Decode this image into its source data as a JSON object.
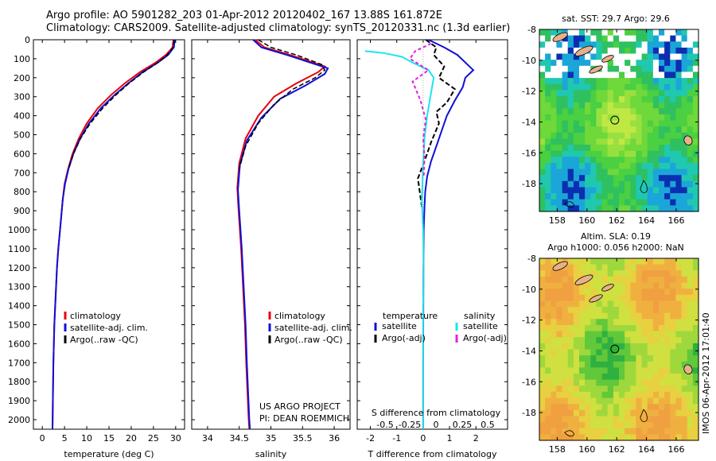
{
  "title": {
    "line1": "Argo profile: AO 5901282_203 01-Apr-2012 20120402_167 13.88S 161.872E",
    "line2": "Climatology: CARS2009. Satellite-adjusted climatology: synTS_20120331.nc (1.3d earlier)"
  },
  "side_stamp": "IMOS 06-Apr-2012 17:01:40",
  "colors": {
    "climatology": "#e8000b",
    "satellite": "#1010d8",
    "argo": "#000000",
    "sat_salinity": "#1ae6f0",
    "argo_salinity": "#e020e0",
    "land": "#e8b08a"
  },
  "chart_data": [
    {
      "type": "line",
      "panel": "temperature",
      "xlabel": "temperature (deg C)",
      "ylabel": "",
      "xlim": [
        -2,
        32
      ],
      "ylim": [
        2050,
        0
      ],
      "xticks": [
        "0",
        "5",
        "10",
        "15",
        "20",
        "25",
        "30"
      ],
      "yticks": [
        "0",
        "100",
        "200",
        "300",
        "400",
        "500",
        "600",
        "700",
        "800",
        "900",
        "1000",
        "1100",
        "1200",
        "1300",
        "1400",
        "1500",
        "1600",
        "1700",
        "1800",
        "1900",
        "2000"
      ],
      "legend": [
        "climatology",
        "satellite-adj. clim.",
        "Argo(..raw -QC)"
      ],
      "series": [
        {
          "name": "climatology",
          "x": [
            29.5,
            29.3,
            27.8,
            25.5,
            22,
            18.5,
            15.5,
            12.5,
            10,
            8.2,
            6.8,
            5.8,
            5,
            4.6,
            4.3,
            4,
            3.6,
            3.3,
            3.1,
            2.9,
            2.7,
            2.6,
            2.5,
            2.4,
            2.3
          ],
          "y": [
            0,
            40,
            80,
            120,
            170,
            230,
            290,
            360,
            440,
            520,
            600,
            680,
            760,
            840,
            920,
            1000,
            1100,
            1200,
            1300,
            1400,
            1500,
            1600,
            1700,
            1850,
            2050
          ]
        },
        {
          "name": "satellite-adj. clim.",
          "x": [
            29.8,
            29.6,
            28.3,
            26,
            22.6,
            19.3,
            16.3,
            13.2,
            10.5,
            8.5,
            7,
            5.9,
            5.1,
            4.6,
            4.3,
            4,
            3.6,
            3.3,
            3.1,
            2.9,
            2.7,
            2.6,
            2.5,
            2.4,
            2.3
          ],
          "y": [
            0,
            40,
            80,
            120,
            170,
            230,
            290,
            360,
            440,
            520,
            600,
            680,
            760,
            840,
            920,
            1000,
            1100,
            1200,
            1300,
            1400,
            1500,
            1600,
            1700,
            1850,
            2050
          ]
        },
        {
          "name": "Argo(..raw -QC)",
          "x": [
            29.6,
            29.4,
            28.1,
            26,
            22.8,
            19.5,
            16.6,
            13.6,
            10.8,
            8.6,
            7,
            5.9
          ],
          "y": [
            0,
            40,
            80,
            120,
            170,
            230,
            290,
            360,
            440,
            520,
            600,
            680
          ]
        }
      ]
    },
    {
      "type": "line",
      "panel": "salinity",
      "xlabel": "salinity",
      "xlim": [
        33.75,
        36.25
      ],
      "ylim": [
        2050,
        0
      ],
      "xticks": [
        "34",
        "34.5",
        "35",
        "35.5",
        "36"
      ],
      "legend": [
        "climatology",
        "satellite-adj. clim.",
        "Argo(..raw -QC)"
      ],
      "annotation": [
        "US ARGO PROJECT",
        "PI: DEAN ROEMMICH"
      ],
      "series": [
        {
          "name": "climatology",
          "x": [
            34.75,
            34.9,
            35.3,
            35.85,
            35.75,
            35.4,
            35.05,
            34.8,
            34.6,
            34.5,
            34.47,
            34.49,
            34.53,
            34.56,
            34.59,
            34.61,
            34.63,
            34.65,
            34.66
          ],
          "y": [
            0,
            40,
            80,
            140,
            170,
            230,
            300,
            400,
            520,
            650,
            780,
            900,
            1100,
            1300,
            1500,
            1700,
            1850,
            2000,
            2050
          ]
        },
        {
          "name": "satellite-adj. clim.",
          "x": [
            34.72,
            34.85,
            35.25,
            35.9,
            35.85,
            35.55,
            35.15,
            34.85,
            34.62,
            34.51,
            34.48,
            34.5,
            34.54,
            34.57,
            34.6,
            34.62,
            34.64,
            34.66,
            34.67
          ],
          "y": [
            0,
            40,
            80,
            150,
            180,
            240,
            310,
            410,
            530,
            660,
            790,
            900,
            1100,
            1300,
            1500,
            1700,
            1850,
            2000,
            2050
          ]
        },
        {
          "name": "Argo(..raw -QC)",
          "x": [
            34.8,
            35,
            35.4,
            35.8,
            35.85,
            35.7,
            35.35,
            35.05,
            34.8,
            34.6,
            34.5
          ],
          "y": [
            0,
            40,
            80,
            130,
            160,
            200,
            260,
            340,
            440,
            560,
            680
          ]
        }
      ]
    },
    {
      "type": "line",
      "panel": "difference",
      "xlabel": "T difference from climatology",
      "secondary_xlabel": "S difference from climatology",
      "xlim": [
        -2.5,
        3.2
      ],
      "ylim": [
        2050,
        0
      ],
      "xticks": [
        "-2",
        "-1",
        "0",
        "1",
        "2"
      ],
      "secondary_xticks": [
        "-0.5",
        "-0.25",
        "0",
        "0.25",
        "0.5"
      ],
      "legend": {
        "temperature": [
          "satellite",
          "Argo(-adj)"
        ],
        "salinity": [
          "satellite",
          "Argo(-adj)"
        ],
        "temperature_heading": "temperature",
        "salinity_heading": "salinity"
      },
      "series": [
        {
          "name": "temperature satellite",
          "x": [
            0.2,
            0.8,
            1.3,
            1.9,
            1.6,
            1.5,
            1.2,
            0.9,
            0.7,
            0.5,
            0.3,
            0.15,
            0.08,
            0.05,
            0.02,
            0.01,
            0,
            0
          ],
          "y": [
            0,
            40,
            80,
            160,
            200,
            250,
            320,
            400,
            480,
            560,
            640,
            720,
            800,
            880,
            1000,
            1300,
            1700,
            2050
          ]
        },
        {
          "name": "temperature Argo(-adj)",
          "x": [
            0.1,
            0.5,
            0.4,
            0.8,
            0.6,
            1.2,
            0.9,
            0.5,
            0.6,
            0.3,
            0.1,
            -0.2,
            -0.1,
            -0.05
          ],
          "y": [
            0,
            40,
            80,
            140,
            200,
            260,
            330,
            380,
            440,
            540,
            620,
            730,
            830,
            880
          ]
        },
        {
          "name": "salinity satellite",
          "x": [
            -2.2,
            -1.5,
            -0.8,
            -0.4,
            0.2,
            0.4,
            0.3,
            0.15,
            0.05,
            0,
            -0.05,
            0,
            0.02,
            0,
            0,
            0
          ],
          "y": [
            60,
            70,
            90,
            120,
            160,
            200,
            280,
            400,
            520,
            650,
            850,
            1000,
            1200,
            1400,
            1700,
            2050
          ]
        },
        {
          "name": "salinity Argo(-adj)",
          "x": [
            0.3,
            -0.3,
            -0.5,
            0.2,
            -0.4,
            -0.1,
            0.1,
            0,
            0.05,
            0.02
          ],
          "y": [
            20,
            60,
            100,
            160,
            220,
            320,
            420,
            520,
            620,
            720
          ]
        }
      ]
    },
    {
      "type": "heatmap",
      "panel": "SST map",
      "title": "sat. SST: 29.7 Argo: 29.6",
      "xticks": [
        "158",
        "160",
        "162",
        "164",
        "166"
      ],
      "yticks": [
        "-8",
        "-10",
        "-12",
        "-14",
        "-16",
        "-18"
      ],
      "xlim": [
        156.8,
        167.5
      ],
      "ylim": [
        -19.8,
        -8
      ],
      "marker": {
        "lon": 161.872,
        "lat": -13.88
      }
    },
    {
      "type": "heatmap",
      "panel": "SLA map",
      "title": [
        "Altim. SLA: 0.19",
        "Argo h1000: 0.056 h2000: NaN"
      ],
      "xticks": [
        "158",
        "160",
        "162",
        "164",
        "166"
      ],
      "yticks": [
        "-8",
        "-10",
        "-12",
        "-14",
        "-16",
        "-18"
      ],
      "xlim": [
        156.8,
        167.5
      ],
      "ylim": [
        -19.8,
        -8
      ],
      "marker": {
        "lon": 161.872,
        "lat": -13.88
      }
    }
  ]
}
